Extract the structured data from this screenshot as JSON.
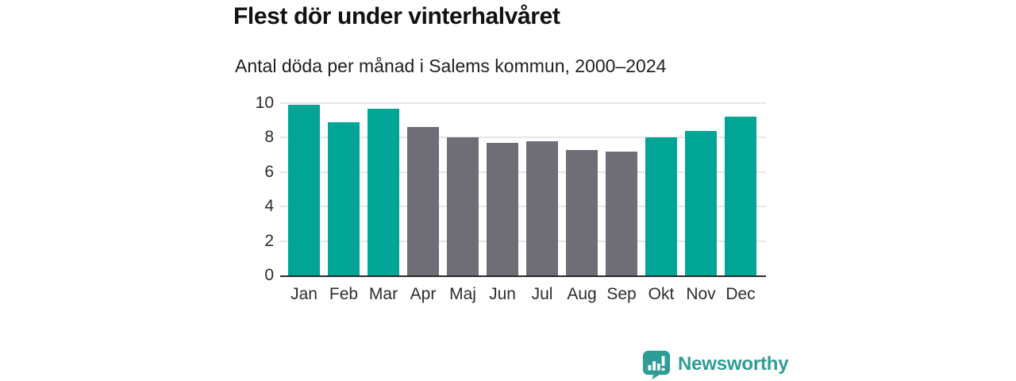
{
  "chart_data": {
    "type": "bar",
    "title": "Flest dör under vinterhalvåret",
    "subtitle": "Antal döda per månad i Salems kommun, 2000–2024",
    "categories": [
      "Jan",
      "Feb",
      "Mar",
      "Apr",
      "Maj",
      "Jun",
      "Jul",
      "Aug",
      "Sep",
      "Okt",
      "Nov",
      "Dec"
    ],
    "values": [
      9.9,
      8.9,
      9.7,
      8.6,
      8.0,
      7.7,
      7.8,
      7.3,
      7.2,
      8.0,
      8.4,
      9.2
    ],
    "bar_colors": [
      "#00a596",
      "#00a596",
      "#00a596",
      "#6f6d76",
      "#6f6d76",
      "#6f6d76",
      "#6f6d76",
      "#6f6d76",
      "#6f6d76",
      "#00a596",
      "#00a596",
      "#00a596"
    ],
    "highlight_color": "#00a596",
    "muted_color": "#6f6d76",
    "xlabel": "",
    "ylabel": "",
    "ylim": [
      0,
      10
    ],
    "yticks": [
      0,
      2,
      4,
      6,
      8,
      10
    ],
    "grid": true,
    "legend": false
  },
  "footer": {
    "brand": "Newsworthy",
    "brand_color": "#2f9d95"
  }
}
